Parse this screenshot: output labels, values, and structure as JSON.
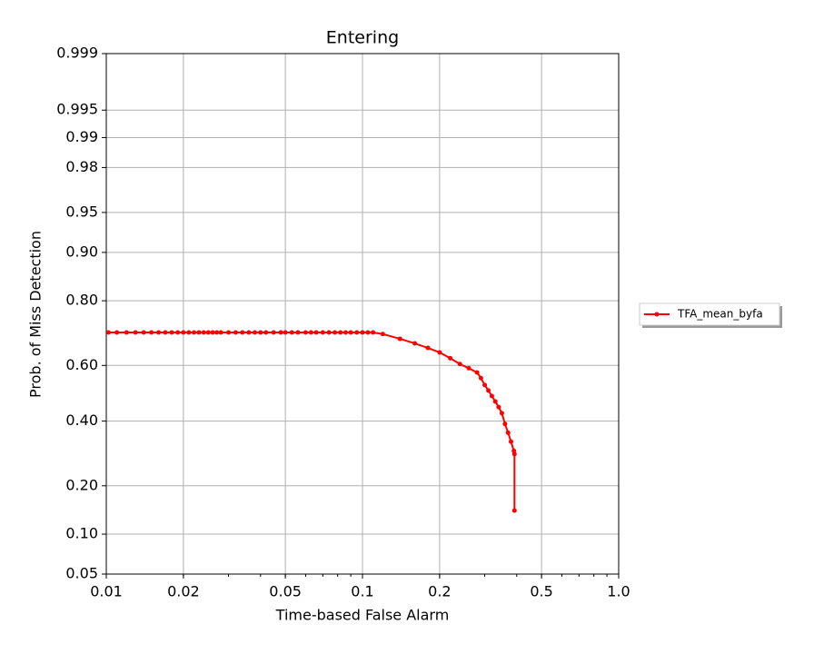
{
  "chart_data": {
    "type": "line",
    "title": "Entering",
    "x_label": "Time-based False Alarm",
    "y_label": "Prob. of Miss Detection",
    "x_scale": "log",
    "y_scale": "probit",
    "grid": true,
    "legend": "outside right",
    "xlim": [
      0.01,
      1.0
    ],
    "xticks": [
      0.01,
      0.02,
      0.05,
      0.1,
      0.2,
      0.5,
      {
        "value": 1.0,
        "label": "1.0"
      }
    ],
    "ylim": [
      0.05,
      0.999
    ],
    "yticks": [
      0.05,
      {
        "value": 0.1,
        "label": "0.10"
      },
      {
        "value": 0.2,
        "label": "0.20"
      },
      {
        "value": 0.4,
        "label": "0.40"
      },
      {
        "value": 0.6,
        "label": "0.60"
      },
      {
        "value": 0.8,
        "label": "0.80"
      },
      {
        "value": 0.9,
        "label": "0.90"
      },
      0.95,
      0.98,
      0.99,
      0.995,
      0.999
    ],
    "series": [
      {
        "name": "TFA_mean_byfa",
        "color": "#ff0000",
        "x": [
          0.0102,
          0.011,
          0.012,
          0.013,
          0.014,
          0.015,
          0.016,
          0.017,
          0.018,
          0.019,
          0.02,
          0.021,
          0.022,
          0.023,
          0.024,
          0.025,
          0.026,
          0.027,
          0.028,
          0.03,
          0.032,
          0.034,
          0.036,
          0.038,
          0.04,
          0.042,
          0.045,
          0.048,
          0.05,
          0.053,
          0.056,
          0.06,
          0.063,
          0.066,
          0.07,
          0.074,
          0.078,
          0.082,
          0.086,
          0.09,
          0.095,
          0.1,
          0.105,
          0.11,
          0.12,
          0.14,
          0.16,
          0.18,
          0.2,
          0.22,
          0.24,
          0.26,
          0.28,
          0.29,
          0.3,
          0.31,
          0.32,
          0.33,
          0.34,
          0.35,
          0.36,
          0.37,
          0.38,
          0.39,
          0.392,
          0.392
        ],
        "values": [
          0.71,
          0.71,
          0.71,
          0.71,
          0.71,
          0.71,
          0.71,
          0.71,
          0.71,
          0.71,
          0.71,
          0.71,
          0.71,
          0.71,
          0.71,
          0.71,
          0.71,
          0.71,
          0.71,
          0.71,
          0.71,
          0.71,
          0.71,
          0.71,
          0.71,
          0.71,
          0.71,
          0.71,
          0.71,
          0.71,
          0.71,
          0.71,
          0.71,
          0.71,
          0.71,
          0.71,
          0.71,
          0.71,
          0.71,
          0.71,
          0.71,
          0.71,
          0.71,
          0.71,
          0.705,
          0.69,
          0.675,
          0.66,
          0.645,
          0.625,
          0.605,
          0.59,
          0.575,
          0.555,
          0.53,
          0.51,
          0.49,
          0.47,
          0.45,
          0.428,
          0.39,
          0.36,
          0.33,
          0.3,
          0.29,
          0.143
        ]
      }
    ]
  }
}
